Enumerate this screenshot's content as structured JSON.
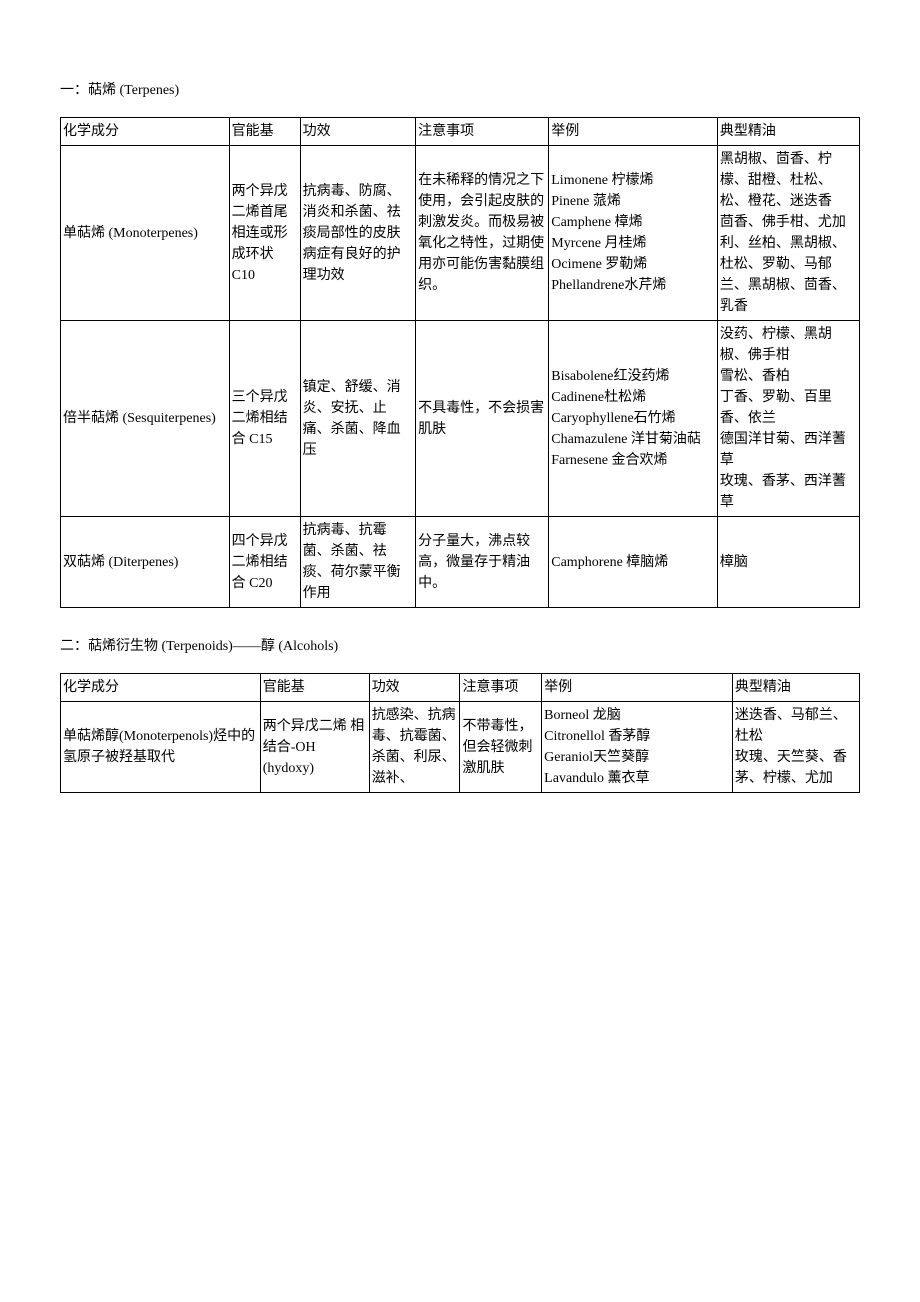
{
  "section1": {
    "title": "一：萜烯 (Terpenes)",
    "columns": [
      "化学成分",
      "官能基",
      "功效",
      "注意事项",
      "举例",
      "典型精油"
    ],
    "col_widths": [
      "19%",
      "8%",
      "13%",
      "15%",
      "19%",
      "16%"
    ],
    "rows": [
      {
        "c1": "单萜烯 (Monoterpenes)",
        "c2": "两个异戊二烯首尾相连或形成环状 C10",
        "c3": "抗病毒、防腐、消炎和杀菌、祛痰局部性的皮肤病症有良好的护理功效",
        "c4": "在未稀释的情况之下使用，会引起皮肤的刺激发炎。而极易被氧化之特性，过期使用亦可能伤害黏膜组织。",
        "c5": "Limonene 柠檬烯\nPinene 蒎烯\nCamphene 樟烯\nMyrcene 月桂烯\nOcimene 罗勒烯\nPhellandrene水芹烯",
        "c6": "黑胡椒、茴香、柠檬、甜橙、杜松、松、橙花、迷迭香\n茴香、佛手柑、尤加利、丝柏、黑胡椒、杜松、罗勒、马郁兰、黑胡椒、茴香、乳香"
      },
      {
        "c1": "倍半萜烯 (Sesquiterpenes)",
        "c2": "三个异戊二烯相结合 C15",
        "c3": "镇定、舒缓、消炎、安抚、止痛、杀菌、降血压",
        "c4": "不具毒性，不会损害肌肤",
        "c5": "Bisabolene红没药烯\nCadinene杜松烯\nCaryophyllene石竹烯\nChamazulene 洋甘菊油萜\nFarnesene 金合欢烯",
        "c6": "没药、柠檬、黑胡椒、佛手柑\n雪松、香柏\n丁香、罗勒、百里香、依兰\n德国洋甘菊、西洋蓍草\n玫瑰、香茅、西洋蓍草"
      },
      {
        "c1": "双萜烯 (Diterpenes)",
        "c2": "四个异戊二烯相结合 C20",
        "c3": "抗病毒、抗霉菌、杀菌、祛痰、荷尔蒙平衡作用",
        "c4": "分子量大，沸点较高，微量存于精油中。",
        "c5": "Camphorene 樟脑烯",
        "c6": "樟脑"
      }
    ]
  },
  "section2": {
    "title": "二：萜烯衍生物 (Terpenoids)——醇 (Alcohols)",
    "columns": [
      "化学成分",
      "官能基",
      "功效",
      "注意事项",
      "举例",
      "典型精油"
    ],
    "col_widths": [
      "22%",
      "12%",
      "10%",
      "9%",
      "21%",
      "14%"
    ],
    "rows": [
      {
        "c1": "单萜烯醇(Monoterpenols)烃中的氢原子被羟基取代",
        "c2": "两个异戊二烯 相结合‐OH (hydoxy)",
        "c3": "抗感染、抗病毒、抗霉菌、杀菌、利尿、滋补、",
        "c4": "不带毒性，但会轻微刺激肌肤",
        "c5": "Borneol 龙脑\nCitronellol 香茅醇\nGeraniol天竺葵醇\nLavandulo 薰衣草",
        "c6": "迷迭香、马郁兰、杜松\n玫瑰、天竺葵、香茅、柠檬、尤加"
      }
    ]
  }
}
